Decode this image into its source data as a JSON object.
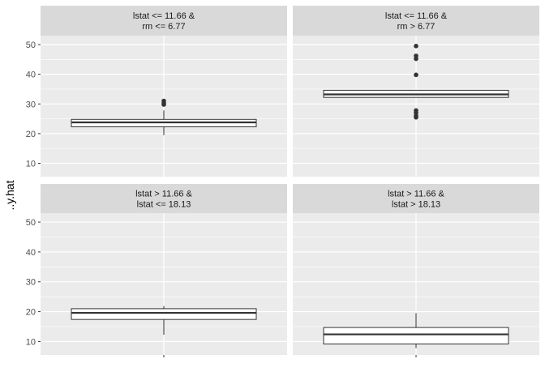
{
  "chart_data": {
    "type": "boxplot",
    "ylabel": "..y.hat",
    "xlabel": "",
    "y_ticks": [
      10,
      20,
      30,
      40,
      50
    ],
    "ylim": [
      5.5,
      53
    ],
    "colors": {
      "panel_bg": "#ebebeb",
      "strip_bg": "#d9d9d9",
      "grid_major": "#ffffff",
      "box_fill": "#ffffff",
      "box_line": "#333333",
      "outlier": "#333333"
    },
    "panels": [
      {
        "strip": [
          "lstat <= 11.66 &",
          "rm <= 6.77"
        ],
        "q1": 22.3,
        "median": 23.8,
        "q3": 24.8,
        "whisker_low": 19.5,
        "whisker_high": 27.8,
        "outliers": [
          29.8,
          30.2,
          31.0
        ]
      },
      {
        "strip": [
          "lstat <= 11.66 &",
          "rm > 6.77"
        ],
        "q1": 32.2,
        "median": 33.2,
        "q3": 34.6,
        "whisker_low": 32.2,
        "whisker_high": 34.6,
        "outliers": [
          25.5,
          26.0,
          27.0,
          27.8,
          39.8,
          45.2,
          46.2,
          49.5
        ]
      },
      {
        "strip": [
          "lstat > 11.66 &",
          "lstat <= 18.13"
        ],
        "q1": 17.4,
        "median": 19.6,
        "q3": 21.0,
        "whisker_low": 12.3,
        "whisker_high": 21.9,
        "outliers": []
      },
      {
        "strip": [
          "lstat > 11.66 &",
          "lstat > 18.13"
        ],
        "q1": 9.2,
        "median": 12.4,
        "q3": 14.7,
        "whisker_low": 7.8,
        "whisker_high": 19.5,
        "outliers": []
      }
    ]
  }
}
